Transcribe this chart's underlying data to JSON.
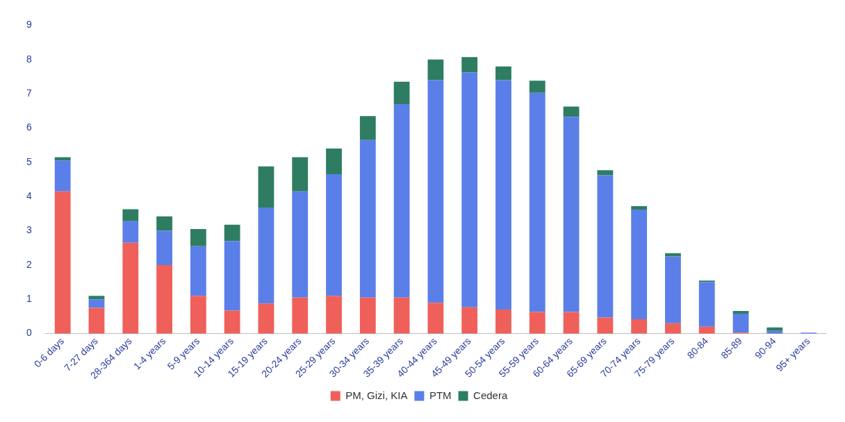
{
  "chart_data": {
    "type": "bar",
    "stacked": true,
    "categories": [
      "0-6 days",
      "7-27 days",
      "28-364 days",
      "1-4 years",
      "5-9 years",
      "10-14 years",
      "15-19 years",
      "20-24 years",
      "25-29 years",
      "30-34 years",
      "35-39 years",
      "40-44 years",
      "45-49 years",
      "50-54 years",
      "55-59 years",
      "60-64 years",
      "65-69 years",
      "70-74 years",
      "75-79 years",
      "80-84",
      "85-89",
      "90-94",
      "95+ years"
    ],
    "series": [
      {
        "name": "PM, Gizi, KIA",
        "color": "#f0605a",
        "values": [
          4.15,
          0.75,
          2.65,
          2.0,
          1.1,
          0.67,
          0.88,
          1.05,
          1.1,
          1.05,
          1.05,
          0.9,
          0.77,
          0.7,
          0.63,
          0.63,
          0.47,
          0.42,
          0.3,
          0.2,
          0.03,
          null,
          null
        ]
      },
      {
        "name": "PTM",
        "color": "#5b7fe8",
        "values": [
          0.9,
          0.25,
          0.63,
          1.0,
          1.45,
          2.03,
          2.8,
          3.1,
          3.55,
          4.6,
          5.65,
          6.5,
          6.85,
          6.7,
          6.4,
          5.7,
          4.15,
          3.2,
          1.95,
          1.3,
          0.55,
          0.08,
          0.03
        ]
      },
      {
        "name": "Cedera",
        "color": "#2e7d62",
        "values": [
          0.1,
          0.1,
          0.35,
          0.42,
          0.5,
          0.48,
          1.2,
          1.0,
          0.75,
          0.7,
          0.65,
          0.6,
          0.45,
          0.4,
          0.35,
          0.3,
          0.15,
          0.1,
          0.1,
          0.05,
          0.08,
          0.1,
          null
        ]
      }
    ],
    "ylim": [
      0,
      9
    ],
    "yticks": [
      0,
      1,
      2,
      3,
      4,
      5,
      6,
      7,
      8,
      9
    ],
    "grid": false,
    "legend": "bottom"
  }
}
